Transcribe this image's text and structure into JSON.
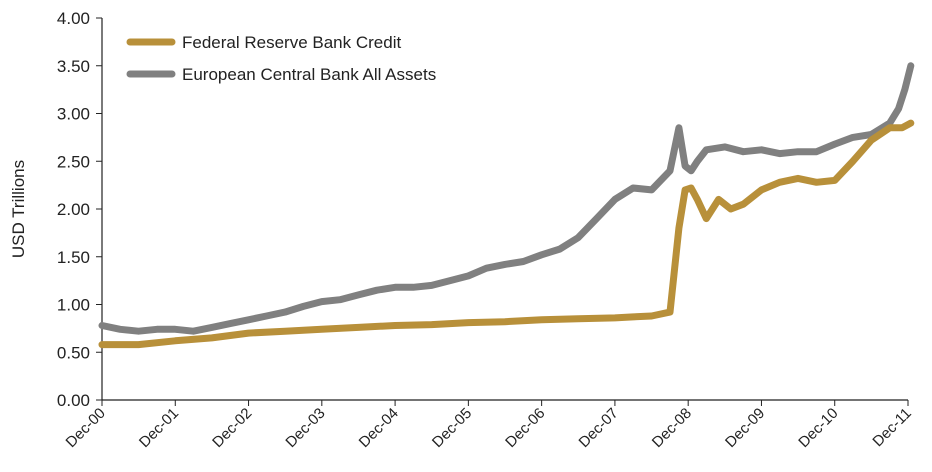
{
  "chart_data": {
    "type": "line",
    "title": "",
    "xlabel": "",
    "ylabel": "USD Trillions",
    "ylim": [
      0,
      4
    ],
    "yticks": [
      "0.00",
      "0.50",
      "1.00",
      "1.50",
      "2.00",
      "2.50",
      "3.00",
      "3.50",
      "4.00"
    ],
    "xticks": [
      "Dec-00",
      "Dec-01",
      "Dec-02",
      "Dec-03",
      "Dec-04",
      "Dec-05",
      "Dec-06",
      "Dec-07",
      "Dec-08",
      "Dec-09",
      "Dec-10",
      "Dec-11"
    ],
    "grid": false,
    "legend_position": "top-left",
    "series": [
      {
        "name": "Federal Reserve Bank Credit",
        "color": "#b8903a",
        "x": [
          "2000-12-01",
          "2001-06-01",
          "2001-12-01",
          "2002-06-01",
          "2002-12-01",
          "2003-06-01",
          "2003-12-01",
          "2004-06-01",
          "2004-12-01",
          "2005-06-01",
          "2005-12-01",
          "2006-06-01",
          "2006-12-01",
          "2007-06-01",
          "2007-12-01",
          "2008-03-01",
          "2008-06-01",
          "2008-09-01",
          "2008-10-15",
          "2008-11-15",
          "2008-12-15",
          "2009-01-15",
          "2009-03-01",
          "2009-05-01",
          "2009-07-01",
          "2009-09-01",
          "2009-12-01",
          "2010-03-01",
          "2010-06-01",
          "2010-09-01",
          "2010-12-01",
          "2011-03-01",
          "2011-06-01",
          "2011-09-01",
          "2011-11-01",
          "2011-12-15"
        ],
        "values": [
          0.58,
          0.58,
          0.62,
          0.65,
          0.7,
          0.72,
          0.74,
          0.76,
          0.78,
          0.79,
          0.81,
          0.82,
          0.84,
          0.85,
          0.86,
          0.87,
          0.88,
          0.92,
          1.8,
          2.2,
          2.22,
          2.1,
          1.9,
          2.1,
          2.0,
          2.05,
          2.2,
          2.28,
          2.32,
          2.28,
          2.3,
          2.5,
          2.72,
          2.85,
          2.85,
          2.9
        ]
      },
      {
        "name": "European Central Bank All Assets",
        "color": "#808080",
        "x": [
          "2000-12-01",
          "2001-03-01",
          "2001-06-01",
          "2001-09-01",
          "2001-12-01",
          "2002-03-01",
          "2002-06-01",
          "2002-09-01",
          "2002-12-01",
          "2003-03-01",
          "2003-06-01",
          "2003-09-01",
          "2003-12-01",
          "2004-03-01",
          "2004-06-01",
          "2004-09-01",
          "2004-12-01",
          "2005-03-01",
          "2005-06-01",
          "2005-09-01",
          "2005-12-01",
          "2006-03-01",
          "2006-06-01",
          "2006-09-01",
          "2006-12-01",
          "2007-03-01",
          "2007-06-01",
          "2007-09-01",
          "2007-12-01",
          "2008-03-01",
          "2008-06-01",
          "2008-09-01",
          "2008-10-15",
          "2008-11-15",
          "2008-12-15",
          "2009-01-15",
          "2009-03-01",
          "2009-06-01",
          "2009-09-01",
          "2009-12-01",
          "2010-03-01",
          "2010-06-01",
          "2010-09-01",
          "2010-12-01",
          "2011-03-01",
          "2011-06-01",
          "2011-09-01",
          "2011-10-15",
          "2011-11-15",
          "2011-12-15"
        ],
        "values": [
          0.78,
          0.74,
          0.72,
          0.74,
          0.74,
          0.72,
          0.76,
          0.8,
          0.84,
          0.88,
          0.92,
          0.98,
          1.03,
          1.05,
          1.1,
          1.15,
          1.18,
          1.18,
          1.2,
          1.25,
          1.3,
          1.38,
          1.42,
          1.45,
          1.52,
          1.58,
          1.7,
          1.9,
          2.1,
          2.22,
          2.2,
          2.4,
          2.85,
          2.45,
          2.4,
          2.5,
          2.62,
          2.65,
          2.6,
          2.62,
          2.58,
          2.6,
          2.6,
          2.68,
          2.75,
          2.78,
          2.9,
          3.05,
          3.25,
          3.5
        ]
      }
    ]
  }
}
